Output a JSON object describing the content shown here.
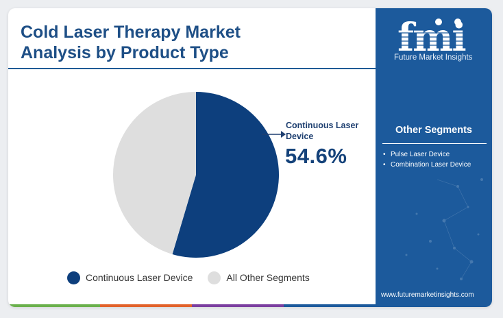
{
  "title_line1": "Cold Laser Therapy Market",
  "title_line2": "Analysis by Product Type",
  "chart_data": {
    "type": "pie",
    "slices": [
      {
        "label": "Continuous Laser Device",
        "value": 54.6,
        "color": "#0d3f7d"
      },
      {
        "label": "All Other Segments",
        "value": 45.4,
        "color": "#dedede"
      }
    ]
  },
  "callout": {
    "label": "Continuous Laser Device",
    "value": "54.6%"
  },
  "legend": [
    {
      "label": "Continuous Laser Device",
      "color": "#0d3f7d"
    },
    {
      "label": "All Other Segments",
      "color": "#dedede"
    }
  ],
  "brand": {
    "name": "Future Market Insights",
    "logo_text": "fmi"
  },
  "panel": {
    "heading": "Other Segments",
    "items": [
      "Pulse Laser Device",
      "Combination Laser Device"
    ],
    "bullet": "•"
  },
  "website": "www.futuremarketinsights.com",
  "colors": {
    "title": "#1e4f86",
    "panel_bg": "#1c5a9c",
    "bottom_bar": [
      "#6ab04c",
      "#e2622b",
      "#7b3fa0",
      "#1c5a9c"
    ]
  }
}
